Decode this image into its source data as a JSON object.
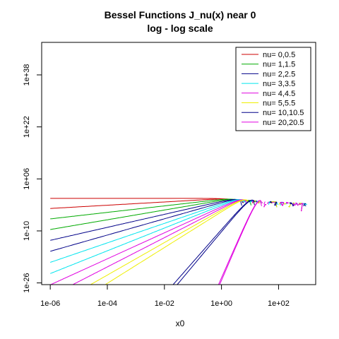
{
  "chart_data": {
    "type": "line",
    "title": "Bessel Functions  J_nu(x)  near 0",
    "subtitle": "log - log  scale",
    "xlabel": "x0",
    "ylabel": "",
    "x_scale": "log",
    "y_scale": "log",
    "xlim": [
      5e-07,
      2000.0
    ],
    "ylim": [
      3e-27,
      1e+48
    ],
    "x_ticks": [
      {
        "value": 1e-06,
        "label": "1e-06"
      },
      {
        "value": 0.0001,
        "label": "1e-04"
      },
      {
        "value": 0.01,
        "label": "1e-02"
      },
      {
        "value": 1,
        "label": "1e+00"
      },
      {
        "value": 100,
        "label": "1e+02"
      }
    ],
    "y_ticks": [
      {
        "value": 1e-26,
        "label": "1e-26"
      },
      {
        "value": 1e-10,
        "label": "1e-10"
      },
      {
        "value": 1000000.0,
        "label": "1e+06"
      },
      {
        "value": 1e+22,
        "label": "1e+22"
      },
      {
        "value": 1e+38,
        "label": "1e+38"
      }
    ],
    "legend_position": "top-right",
    "series": [
      {
        "name": "nu= 0,0.5",
        "color": "#cc0000",
        "nus": [
          0,
          0.5
        ]
      },
      {
        "name": "nu= 1,1.5",
        "color": "#00aa00",
        "nus": [
          1,
          1.5
        ]
      },
      {
        "name": "nu= 2,2.5",
        "color": "#000088",
        "nus": [
          2,
          2.5
        ]
      },
      {
        "name": "nu= 3,3.5",
        "color": "#00e5ee",
        "nus": [
          3,
          3.5
        ]
      },
      {
        "name": "nu= 4,4.5",
        "color": "#e000e0",
        "nus": [
          4,
          4.5
        ]
      },
      {
        "name": "nu= 5,5.5",
        "color": "#eeee00",
        "nus": [
          5,
          5.5
        ]
      },
      {
        "name": "nu= 10,10.5",
        "color": "#000088",
        "nus": [
          10,
          10.5
        ]
      },
      {
        "name": "nu= 20,20.5",
        "color": "#e000e0",
        "nus": [
          20,
          20.5
        ]
      }
    ]
  }
}
